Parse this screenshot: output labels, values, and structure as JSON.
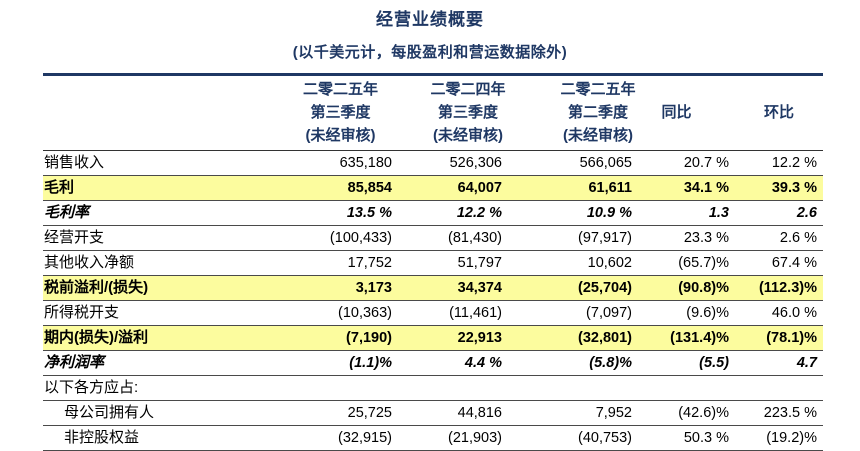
{
  "title": "经营业绩概要",
  "subtitle": "(以千美元计，每股盈利和营运数据除外)",
  "colors": {
    "accent_navy": "#1F3864",
    "highlight_yellow": "#FCFC9E",
    "text": "#000000"
  },
  "table": {
    "columns": [
      {
        "line1": "二零二五年",
        "line2": "第三季度",
        "line3": "(未经审核)"
      },
      {
        "line1": "二零二四年",
        "line2": "第三季度",
        "line3": "(未经审核)"
      },
      {
        "line1": "二零二五年",
        "line2": "第二季度",
        "line3": "(未经审核)"
      },
      {
        "label": "同比"
      },
      {
        "label": "环比"
      }
    ],
    "rows": [
      {
        "label": "销售收入",
        "values": [
          "635,180",
          "526,306",
          "566,065",
          "20.7 %",
          "12.2 %"
        ]
      },
      {
        "label": "毛利",
        "values": [
          "85,854",
          "64,007",
          "61,611",
          "34.1 %",
          "39.3 %"
        ]
      },
      {
        "label": "毛利率",
        "values": [
          "13.5 %",
          "12.2 %",
          "10.9 %",
          "1.3",
          "2.6"
        ]
      },
      {
        "label": "经营开支",
        "values": [
          "(100,433)",
          "(81,430)",
          "(97,917)",
          "23.3 %",
          "2.6 %"
        ]
      },
      {
        "label": "其他收入净额",
        "values": [
          "17,752",
          "51,797",
          "10,602",
          "(65.7)%",
          "67.4 %"
        ]
      },
      {
        "label": "税前溢利/(损失)",
        "values": [
          "3,173",
          "34,374",
          "(25,704)",
          "(90.8)%",
          "(112.3)%"
        ]
      },
      {
        "label": "所得税开支",
        "values": [
          "(10,363)",
          "(11,461)",
          "(7,097)",
          "(9.6)%",
          "46.0 %"
        ]
      },
      {
        "label": "期内(损失)/溢利",
        "values": [
          "(7,190)",
          "22,913",
          "(32,801)",
          "(131.4)%",
          "(78.1)%"
        ]
      },
      {
        "label": "净利润率",
        "values": [
          "(1.1)%",
          "4.4 %",
          "(5.8)%",
          "(5.5)",
          "4.7"
        ]
      },
      {
        "label": "以下各方应占:",
        "values": [
          "",
          "",
          "",
          "",
          ""
        ]
      },
      {
        "label": "母公司拥有人",
        "values": [
          "25,725",
          "44,816",
          "7,952",
          "(42.6)%",
          "223.5 %"
        ]
      },
      {
        "label": "非控股权益",
        "values": [
          "(32,915)",
          "(21,903)",
          "(40,753)",
          "50.3 %",
          "(19.2)%"
        ]
      }
    ]
  }
}
